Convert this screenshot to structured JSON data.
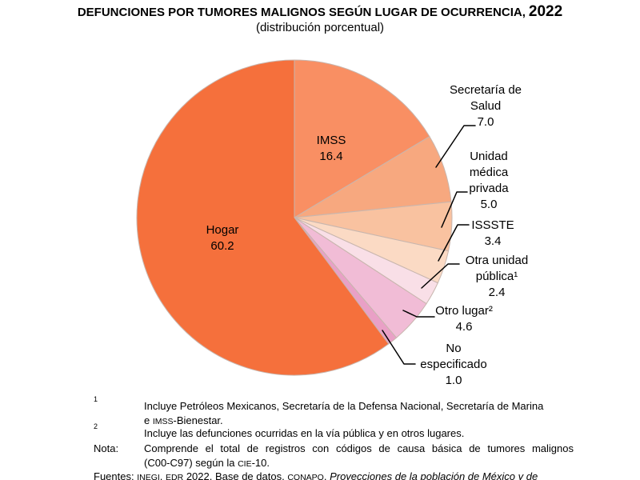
{
  "chart_data": {
    "type": "pie",
    "title_main": "DEFUNCIONES POR TUMORES MALIGNOS SEGÚN LUGAR DE OCURRENCIA,",
    "title_year": "2022",
    "subtitle": "(distribución porcentual)",
    "unit": "percent",
    "total": 100.0,
    "direction": "clockwise",
    "start_angle_deg": 0,
    "slice_stroke": "#c8b6ae",
    "slices": [
      {
        "id": "imss",
        "label": "IMSS",
        "value": 16.4,
        "display": "16.4",
        "color": "#f98f63"
      },
      {
        "id": "secretaria-de-salud",
        "label": "Secretaría de Salud",
        "value": 7.0,
        "display": "7.0",
        "color": "#f7a87f"
      },
      {
        "id": "unidad-medica-privada",
        "label": "Unidad médica privada",
        "value": 5.0,
        "display": "5.0",
        "color": "#f9c2a0"
      },
      {
        "id": "issste",
        "label": "ISSSTE",
        "value": 3.4,
        "display": "3.4",
        "color": "#fbdac4"
      },
      {
        "id": "otra-unidad-publica",
        "label": "Otra unidad pública¹",
        "value": 2.4,
        "display": "2.4",
        "color": "#f9dfe7"
      },
      {
        "id": "otro-lugar",
        "label": "Otro lugar²",
        "value": 4.6,
        "display": "4.6",
        "color": "#f1bcd6"
      },
      {
        "id": "no-especificado",
        "label": "No especificado",
        "value": 1.0,
        "display": "1.0",
        "color": "#e9a0c6"
      },
      {
        "id": "hogar",
        "label": "Hogar",
        "value": 60.2,
        "display": "60.2",
        "color": "#f5703c"
      }
    ]
  },
  "footnotes": {
    "fn1_marker": "1",
    "fn1_line1": "Incluye Petróleos Mexicanos, Secretaría de la Defensa Nacional, Secretaría de Marina",
    "fn1_line2_pre": "e ",
    "fn1_line2_sc": "IMSS",
    "fn1_line2_post": "-Bienestar.",
    "fn2_marker": "2",
    "fn2_text": "Incluye las defunciones ocurridas en la vía pública y en otros lugares.",
    "nota_label": "Nota:",
    "nota_line1": "Comprende el total de registros con códigos de causa básica de tumores malignos",
    "nota_line2_pre": "(C00-C97) según la ",
    "nota_line2_sc": "CIE",
    "nota_line2_post": "-10.",
    "fuentes_label": "Fuentes: ",
    "fuentes_sc1": "INEGI",
    "fuentes_t1": ". ",
    "fuentes_sc2": "EDR",
    "fuentes_t2": " 2022. Base de datos. ",
    "fuentes_sc3": "CONAPO",
    "fuentes_t3": ". ",
    "fuentes_italic": "Proyecciones de la población de México y de"
  }
}
